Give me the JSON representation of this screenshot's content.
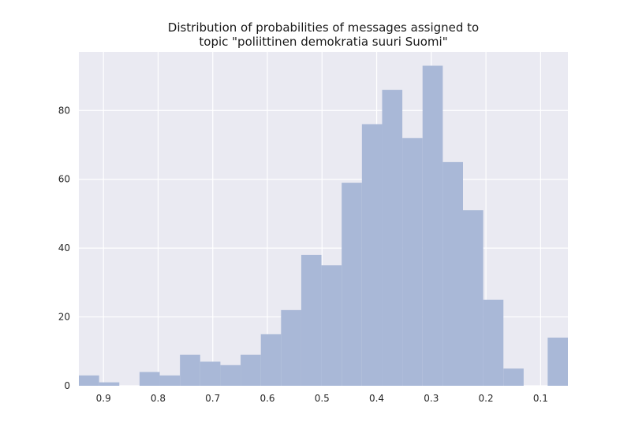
{
  "chart_data": {
    "type": "bar",
    "title": [
      "Distribution of probabilities of messages assigned to",
      "topic \"poliittinen demokratia suuri Suomi\""
    ],
    "xlabel": "",
    "ylabel": "",
    "x_axis_reversed": true,
    "xlim": [
      0.945,
      0.05
    ],
    "ylim": [
      0,
      97
    ],
    "x_ticks": [
      0.9,
      0.8,
      0.7,
      0.6,
      0.5,
      0.4,
      0.3,
      0.2,
      0.1
    ],
    "x_tick_labels": [
      "0.9",
      "0.8",
      "0.7",
      "0.6",
      "0.5",
      "0.4",
      "0.3",
      "0.2",
      "0.1"
    ],
    "y_ticks": [
      0,
      20,
      40,
      60,
      80
    ],
    "y_tick_labels": [
      "0",
      "20",
      "40",
      "60",
      "80"
    ],
    "grid": true,
    "bin_width": 0.037,
    "bars": [
      {
        "x0": 0.945,
        "value": 3
      },
      {
        "x0": 0.908,
        "value": 1
      },
      {
        "x0": 0.871,
        "value": 0
      },
      {
        "x0": 0.834,
        "value": 4
      },
      {
        "x0": 0.797,
        "value": 3
      },
      {
        "x0": 0.76,
        "value": 9
      },
      {
        "x0": 0.723,
        "value": 7
      },
      {
        "x0": 0.686,
        "value": 6
      },
      {
        "x0": 0.649,
        "value": 9
      },
      {
        "x0": 0.612,
        "value": 15
      },
      {
        "x0": 0.575,
        "value": 22
      },
      {
        "x0": 0.538,
        "value": 38
      },
      {
        "x0": 0.501,
        "value": 35
      },
      {
        "x0": 0.464,
        "value": 59
      },
      {
        "x0": 0.427,
        "value": 76
      },
      {
        "x0": 0.39,
        "value": 86
      },
      {
        "x0": 0.353,
        "value": 72
      },
      {
        "x0": 0.316,
        "value": 93
      },
      {
        "x0": 0.279,
        "value": 65
      },
      {
        "x0": 0.242,
        "value": 51
      },
      {
        "x0": 0.205,
        "value": 25
      },
      {
        "x0": 0.168,
        "value": 5
      },
      {
        "x0": 0.131,
        "value": 0
      },
      {
        "x0": 0.094,
        "value": 0
      },
      {
        "x0": 0.087,
        "value": 14
      }
    ],
    "colors": {
      "background": "#eaeaf2",
      "bar": "#a9b8d7",
      "grid": "#ffffff"
    }
  }
}
